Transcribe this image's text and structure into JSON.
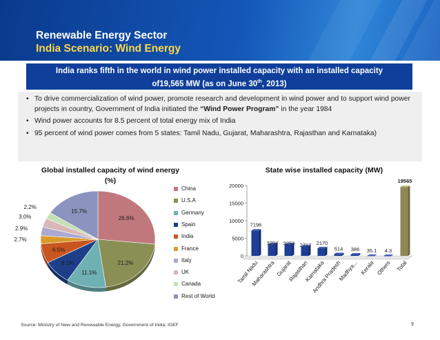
{
  "header": {
    "title": "Renewable Energy Sector",
    "subtitle": "India Scenario: Wind Energy"
  },
  "banner": {
    "line1": "India ranks fifth in the world in wind power installed capacity with an installed capacity",
    "line2_prefix": "of19,565 MW (as on June 30",
    "line2_sup": "th",
    "line2_suffix": ", 2013)"
  },
  "bullets": [
    {
      "text_before": "To drive commercialization of wind power, promote research and development in wind power and to support wind power projects in country, Government of India initiated the ",
      "bold": "“Wind Power Program”",
      "text_after": " in the year 1984"
    },
    {
      "text_before": "Wind power accounts for 8.5 percent of total energy mix of India",
      "bold": "",
      "text_after": ""
    },
    {
      "text_before": "95 percent of wind power comes from 5 states: Tamil Nadu, Gujarat, Maharashtra, Rajasthan and Karnataka)",
      "bold": "",
      "text_after": ""
    }
  ],
  "bullet_symbol": "•",
  "chart_data": [
    {
      "type": "pie",
      "title_line1": "Global installed capacity of wind energy",
      "title_line2": "(%)",
      "categories": [
        "China",
        "U.S.A",
        "Germany",
        "Spain",
        "India",
        "France",
        "Italy",
        "UK",
        "Canada",
        "Rest of World"
      ],
      "values": [
        26.6,
        21.2,
        11.1,
        8.1,
        6.5,
        2.7,
        2.9,
        3.0,
        2.2,
        15.7
      ],
      "labels": [
        "26.6%",
        "21.2%",
        "11.1%",
        "8.1%",
        "6.5%",
        "2.7%",
        "2.9%",
        "3.0%",
        "2.2%",
        "15.7%"
      ],
      "colors": [
        "#c0787c",
        "#8a8f55",
        "#6fb0b3",
        "#1d3f8a",
        "#c8561f",
        "#d99a2a",
        "#a9a9d2",
        "#d8b8b8",
        "#c5e0b4",
        "#8a94be"
      ],
      "legend": "right"
    },
    {
      "type": "bar",
      "title": "State wise installed capacity (MW)",
      "categories": [
        "Tamil Nadu",
        "Maharashtra",
        "Gujarat",
        "Rajasthan",
        "Karnataka",
        "Andhra Pradesh",
        "Madhya...",
        "Kerala",
        "Others",
        "Total"
      ],
      "values": [
        7196,
        3294,
        3250,
        2717,
        2170,
        514,
        386,
        35.1,
        4.3,
        19565
      ],
      "value_labels": [
        "7196",
        "3294",
        "3250",
        "2717",
        "2170",
        "514",
        "386",
        "35.1",
        "4.3",
        "19565"
      ],
      "ylim": [
        0,
        20000
      ],
      "yticks": [
        "0",
        "5000",
        "10000",
        "15000",
        "20000"
      ],
      "ytick_values": [
        0,
        5000,
        10000,
        15000,
        20000
      ],
      "bar_color": "#1f3f96",
      "total_color": "#8f8855",
      "grid": false
    }
  ],
  "footer": {
    "source": "Source: Ministry of New and Renewable Energy, Government of India; IGEF",
    "page": "9"
  }
}
